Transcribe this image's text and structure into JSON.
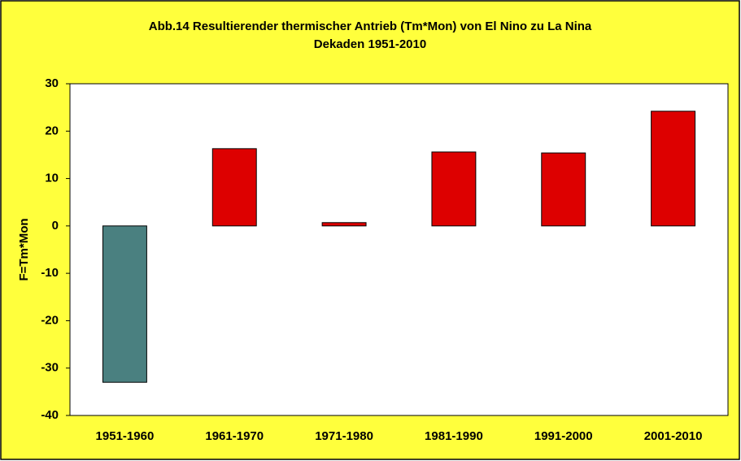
{
  "chart_data": {
    "type": "bar",
    "title": "Abb.14 Resultierender thermischer Antrieb (Tm*Mon) von El Nino zu La Nina",
    "subtitle": "Dekaden 1951-2010",
    "y_label": "F=Tm*Mon",
    "categories": [
      "1951-1960",
      "1961-1970",
      "1971-1980",
      "1981-1990",
      "1991-2000",
      "2001-2010"
    ],
    "values": [
      -33,
      16.3,
      0.7,
      15.6,
      15.4,
      24.2
    ],
    "colors": [
      "#4a8080",
      "#dd0000",
      "#dd0000",
      "#dd0000",
      "#dd0000",
      "#dd0000"
    ],
    "ylim": [
      -40,
      30
    ],
    "yticks": [
      -40,
      -30,
      -20,
      -10,
      0,
      10,
      20,
      30
    ],
    "grid": false
  }
}
